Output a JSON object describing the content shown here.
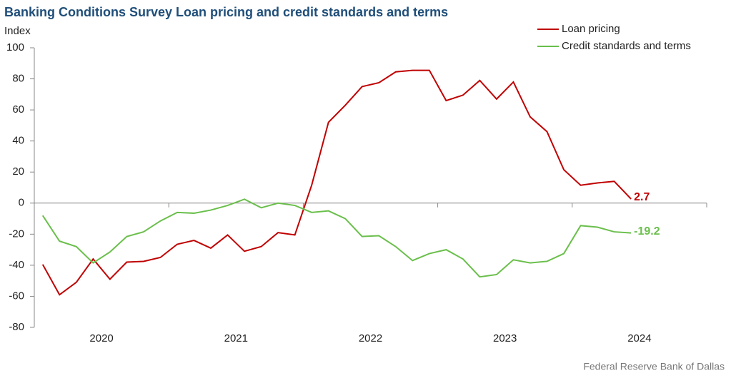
{
  "chart_data": {
    "type": "line",
    "title": "Banking Conditions Survey Loan pricing and credit standards and terms",
    "y_label": "Index",
    "source": "Federal Reserve Bank of Dallas",
    "x": [
      2020.0625,
      2020.1875,
      2020.3125,
      2020.4375,
      2020.5625,
      2020.6875,
      2020.8125,
      2020.9375,
      2021.0625,
      2021.1875,
      2021.3125,
      2021.4375,
      2021.5625,
      2021.6875,
      2021.8125,
      2021.9375,
      2022.0625,
      2022.1875,
      2022.3125,
      2022.4375,
      2022.5625,
      2022.6875,
      2022.8125,
      2022.9375,
      2023.0625,
      2023.1875,
      2023.3125,
      2023.4375,
      2023.5625,
      2023.6875,
      2023.8125,
      2023.9375,
      2024.0625,
      2024.1875,
      2024.3125,
      2024.4375
    ],
    "series": [
      {
        "name": "Loan pricing",
        "color": "#c00000",
        "values": [
          -39.5,
          -59,
          -51,
          -36,
          -49,
          -38,
          -37.5,
          -35,
          -26.5,
          -24,
          -29,
          -20.5,
          -31,
          -28,
          -19,
          -20.5,
          11.5,
          52,
          63,
          75,
          77.5,
          84.5,
          85.5,
          85.5,
          66,
          69.5,
          79,
          67,
          78,
          55.5,
          46,
          21.5,
          11.5,
          13,
          14,
          2.7
        ]
      },
      {
        "name": "Credit standards and terms",
        "color": "#6abf4b",
        "values": [
          -8,
          -24.5,
          -28,
          -38.5,
          -31.5,
          -21.5,
          -18.5,
          -11.5,
          -6,
          -6.5,
          -4.5,
          -1.5,
          2.5,
          -3,
          0,
          -1.5,
          -6,
          -5,
          -10,
          -21.5,
          -21,
          -28,
          -37,
          -32.5,
          -30,
          -36,
          -47.5,
          -46,
          -36.5,
          -38.5,
          -37.5,
          -32.5,
          -14.5,
          -15.5,
          -18.5,
          -19.2
        ]
      }
    ],
    "xlim": [
      2020,
      2025
    ],
    "xticks": [
      2020,
      2021,
      2022,
      2023,
      2024,
      2025
    ],
    "xlabels": [
      {
        "value": 2020.5,
        "label": "2020"
      },
      {
        "value": 2021.5,
        "label": "2021"
      },
      {
        "value": 2022.5,
        "label": "2022"
      },
      {
        "value": 2023.5,
        "label": "2023"
      },
      {
        "value": 2024.5,
        "label": "2024"
      }
    ],
    "ylim": [
      -80,
      100
    ],
    "yticks": [
      -80,
      -60,
      -40,
      -20,
      0,
      20,
      40,
      60,
      80,
      100
    ],
    "grid": false,
    "legend": "top-right"
  }
}
